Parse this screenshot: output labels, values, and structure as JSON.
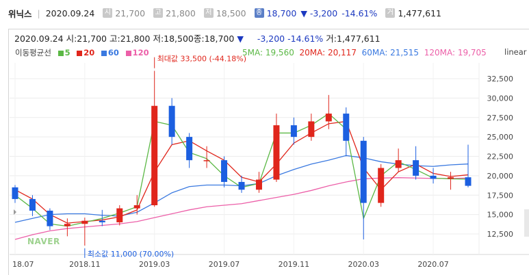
{
  "header": {
    "name": "위닉스",
    "date": "2020.09.24",
    "open_label": "시",
    "open": "21,700",
    "high_label": "고",
    "high": "21,800",
    "low_label": "저",
    "low": "18,500",
    "close_label": "종",
    "close": "18,700",
    "change": "▼ -3,200",
    "change_pct": "-14.61%",
    "volume_label": "거",
    "volume": "1,477,611"
  },
  "info": {
    "text_date": "2020.09.24",
    "text_open": "시:21,700",
    "text_high": "고:21,800",
    "text_low": "저:18,500",
    "text_close": "종:18,700",
    "arrow": "▼",
    "text_change": "-3,200",
    "text_pct": "-14.61%",
    "text_volume": "거:1,477,611"
  },
  "legend": {
    "title": "이동평균선",
    "ma5": "5",
    "ma20": "20",
    "ma60": "60",
    "ma120": "120",
    "ma5_val": "5MA: 19,560",
    "ma20_val": "20MA: 20,117",
    "ma60_val": "60MA: 21,515",
    "ma120_val": "120MA: 19,705",
    "scale": "linear"
  },
  "colors": {
    "up": "#e0261c",
    "down": "#1c5fe0",
    "ma5": "#5bb845",
    "ma20": "#e0261c",
    "ma60": "#3a79e0",
    "ma120": "#ec5fa8"
  },
  "annotations": {
    "max": "최대값 33,500 (-44.18%)",
    "min": "최소값 11,000 (70.00%)",
    "watermark": "NAVER"
  },
  "chart_data": {
    "type": "candlestick",
    "x_ticks": [
      "18.07",
      "2018.11",
      "2019.03",
      "2019.07",
      "2019.11",
      "2020.03",
      "2020.07"
    ],
    "y_ticks": [
      12500,
      15000,
      17500,
      20000,
      22500,
      25000,
      27500,
      30000,
      32500
    ],
    "ylim": [
      10000,
      35000
    ],
    "scale": "linear",
    "max_value": 33500,
    "min_value": 11000,
    "monthly_ohlc": [
      {
        "m": "2018.07",
        "o": 18500,
        "h": 18800,
        "l": 16500,
        "c": 17000
      },
      {
        "m": "2018.08",
        "o": 17000,
        "h": 17500,
        "l": 14800,
        "c": 15500
      },
      {
        "m": "2018.09",
        "o": 15500,
        "h": 15800,
        "l": 13000,
        "c": 13500
      },
      {
        "m": "2018.10",
        "o": 13500,
        "h": 14500,
        "l": 12200,
        "c": 13800
      },
      {
        "m": "2018.11",
        "o": 13800,
        "h": 14600,
        "l": 11000,
        "c": 14200
      },
      {
        "m": "2018.12",
        "o": 14200,
        "h": 15600,
        "l": 13500,
        "c": 14000
      },
      {
        "m": "2019.01",
        "o": 14000,
        "h": 16200,
        "l": 13600,
        "c": 15800
      },
      {
        "m": "2019.02",
        "o": 15800,
        "h": 17500,
        "l": 15000,
        "c": 16200
      },
      {
        "m": "2019.03",
        "o": 16200,
        "h": 33500,
        "l": 16000,
        "c": 29000
      },
      {
        "m": "2019.04",
        "o": 29000,
        "h": 30000,
        "l": 24000,
        "c": 25000
      },
      {
        "m": "2019.05",
        "o": 25000,
        "h": 25500,
        "l": 21000,
        "c": 22000
      },
      {
        "m": "2019.06",
        "o": 22000,
        "h": 23800,
        "l": 21000,
        "c": 22000
      },
      {
        "m": "2019.07",
        "o": 22000,
        "h": 22500,
        "l": 18500,
        "c": 19200
      },
      {
        "m": "2019.08",
        "o": 19200,
        "h": 20000,
        "l": 17800,
        "c": 18200
      },
      {
        "m": "2019.09",
        "o": 18200,
        "h": 20500,
        "l": 17800,
        "c": 19500
      },
      {
        "m": "2019.10",
        "o": 19500,
        "h": 28000,
        "l": 19200,
        "c": 26500
      },
      {
        "m": "2019.11",
        "o": 26500,
        "h": 27500,
        "l": 24000,
        "c": 25000
      },
      {
        "m": "2019.12",
        "o": 25000,
        "h": 28000,
        "l": 24500,
        "c": 27000
      },
      {
        "m": "2020.01",
        "o": 27000,
        "h": 30400,
        "l": 26000,
        "c": 28000
      },
      {
        "m": "2020.02",
        "o": 28000,
        "h": 28800,
        "l": 22500,
        "c": 24500
      },
      {
        "m": "2020.03",
        "o": 24500,
        "h": 25000,
        "l": 11800,
        "c": 16500
      },
      {
        "m": "2020.04",
        "o": 16500,
        "h": 21500,
        "l": 16000,
        "c": 21000
      },
      {
        "m": "2020.05",
        "o": 21000,
        "h": 23500,
        "l": 20500,
        "c": 22000
      },
      {
        "m": "2020.06",
        "o": 22000,
        "h": 23800,
        "l": 19500,
        "c": 20000
      },
      {
        "m": "2020.07",
        "o": 20000,
        "h": 21000,
        "l": 19000,
        "c": 19600
      },
      {
        "m": "2020.08",
        "o": 19600,
        "h": 20500,
        "l": 18200,
        "c": 19800
      },
      {
        "m": "2020.09",
        "o": 19800,
        "h": 24000,
        "l": 18500,
        "c": 18700
      }
    ],
    "ma": {
      "5MA": [
        17500,
        15800,
        13800,
        13500,
        14000,
        14500,
        15200,
        16000,
        27000,
        26500,
        23000,
        22200,
        20000,
        18500,
        19000,
        25500,
        25500,
        26500,
        28000,
        26000,
        14500,
        20000,
        21800,
        20800,
        19700,
        19600,
        19560
      ],
      "20MA": [
        18200,
        17000,
        15000,
        13900,
        14100,
        14300,
        14700,
        15600,
        20500,
        24000,
        24500,
        23200,
        22000,
        19800,
        19200,
        21500,
        24200,
        25500,
        26700,
        27000,
        21000,
        18200,
        20500,
        21500,
        20300,
        19900,
        20117
      ],
      "60MA": [
        14000,
        14500,
        15000,
        15100,
        15100,
        14900,
        14800,
        15300,
        16500,
        17800,
        18600,
        18800,
        18800,
        18700,
        19000,
        20000,
        20800,
        21500,
        22000,
        22600,
        22300,
        21800,
        21500,
        21300,
        21200,
        21400,
        21515
      ],
      "120MA": [
        11800,
        12400,
        12900,
        13200,
        13400,
        13600,
        13800,
        14100,
        14600,
        15100,
        15600,
        16000,
        16200,
        16400,
        16800,
        17200,
        17600,
        18100,
        18700,
        19200,
        19600,
        19700,
        19750,
        19700,
        19650,
        19650,
        19705
      ]
    }
  }
}
